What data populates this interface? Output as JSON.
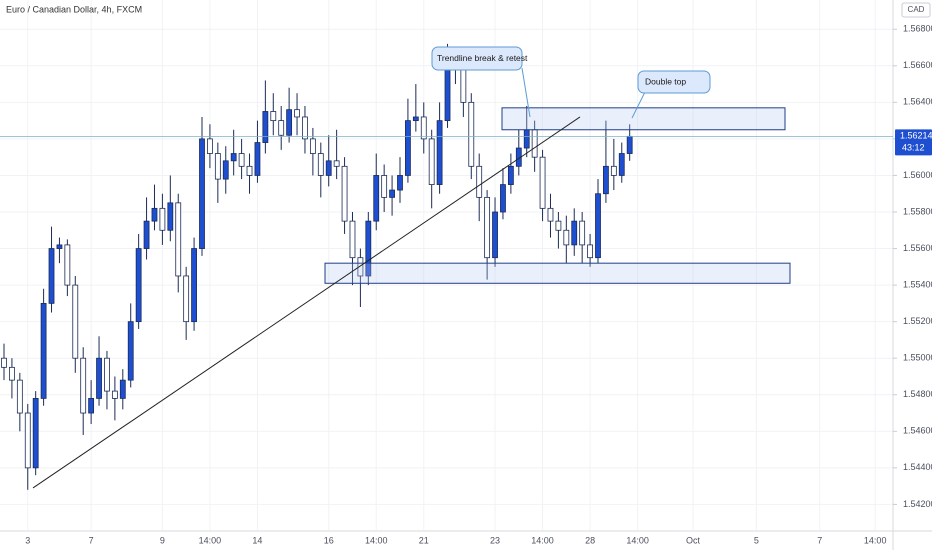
{
  "chart_data": {
    "type": "candlestick",
    "title": "Euro / Canadian Dollar, 4h, FXCM",
    "currency": "CAD",
    "countdown": "43:12",
    "last_price": 1.56214,
    "up_color": "#1f4fd1",
    "down_color": "#ffffff",
    "border_color": "#1b2b57",
    "grid": true,
    "ylim": [
      1.5406,
      1.5696
    ],
    "yticks": [
      {
        "value": 1.542,
        "label": "1.54200"
      },
      {
        "value": 1.544,
        "label": "1.54400"
      },
      {
        "value": 1.546,
        "label": "1.54600"
      },
      {
        "value": 1.548,
        "label": "1.54800"
      },
      {
        "value": 1.55,
        "label": "1.55000"
      },
      {
        "value": 1.552,
        "label": "1.55200"
      },
      {
        "value": 1.554,
        "label": "1.55400"
      },
      {
        "value": 1.556,
        "label": "1.55600"
      },
      {
        "value": 1.558,
        "label": "1.55800"
      },
      {
        "value": 1.56,
        "label": "1.56000"
      },
      {
        "value": 1.562,
        "label": "1.56200"
      },
      {
        "value": 1.564,
        "label": "1.56400"
      },
      {
        "value": 1.566,
        "label": "1.56600"
      },
      {
        "value": 1.568,
        "label": "1.56800"
      }
    ],
    "categories": [
      null,
      null,
      null,
      "3",
      null,
      null,
      null,
      null,
      null,
      null,
      null,
      "7",
      null,
      null,
      null,
      null,
      null,
      null,
      null,
      null,
      "9",
      null,
      null,
      null,
      null,
      null,
      "14:00",
      null,
      null,
      null,
      null,
      null,
      "14",
      null,
      null,
      null,
      null,
      null,
      null,
      null,
      null,
      "16",
      null,
      null,
      null,
      null,
      null,
      "14:00",
      null,
      null,
      null,
      null,
      null,
      "21",
      null,
      null,
      null,
      null,
      null,
      null,
      null,
      null,
      "23",
      null,
      null,
      null,
      null,
      null,
      "14:00",
      null,
      null,
      null,
      null,
      null,
      "28",
      null,
      null,
      null,
      null,
      null,
      "14:00",
      null,
      null,
      null,
      null,
      null,
      null,
      "Oct",
      null,
      null,
      null,
      null,
      null,
      null,
      null,
      "5",
      null,
      null,
      null,
      null,
      null,
      null,
      null,
      "7",
      null,
      null,
      null,
      null,
      null,
      null,
      "14:00"
    ],
    "open": [
      1.55,
      1.5495,
      1.5488,
      1.547,
      1.544,
      1.5478,
      1.553,
      1.556,
      1.5562,
      1.554,
      1.55,
      1.547,
      1.5478,
      1.55,
      1.5482,
      1.5478,
      1.5488,
      1.552,
      1.556,
      1.5575,
      1.5582,
      1.557,
      1.5585,
      1.5545,
      1.552,
      1.556,
      1.562,
      1.5612,
      1.5598,
      1.5608,
      1.5612,
      1.5605,
      1.56,
      1.5618,
      1.5635,
      1.563,
      1.5622,
      1.5636,
      1.5632,
      1.562,
      1.5612,
      1.56,
      1.5608,
      1.5605,
      1.5575,
      1.5555,
      1.5545,
      1.5575,
      1.56,
      1.5588,
      1.5592,
      1.56,
      1.563,
      1.5632,
      1.562,
      1.5595,
      1.563,
      1.5665,
      1.566,
      1.564,
      1.5605,
      1.5588,
      1.5555,
      1.558,
      1.5595,
      1.5605,
      1.5615,
      1.5625,
      1.561,
      1.5582,
      1.5575,
      1.557,
      1.5562,
      1.5575,
      1.5562,
      1.5555,
      1.559,
      1.5605,
      1.56,
      1.5612,
      null,
      null,
      null,
      null,
      null,
      null,
      null,
      null,
      null,
      null,
      null,
      null,
      null,
      null,
      null,
      null,
      null,
      null,
      null,
      null,
      null,
      null,
      null,
      null,
      null,
      null,
      null,
      null,
      null,
      null,
      null
    ],
    "high": [
      1.5508,
      1.55,
      1.5492,
      1.5475,
      1.5482,
      1.5538,
      1.5572,
      1.5566,
      1.5565,
      1.5545,
      1.5506,
      1.5488,
      1.5512,
      1.5504,
      1.549,
      1.5494,
      1.553,
      1.5568,
      1.5588,
      1.5595,
      1.559,
      1.56,
      1.559,
      1.555,
      1.5566,
      1.5632,
      1.5628,
      1.5618,
      1.5616,
      1.5625,
      1.562,
      1.5612,
      1.563,
      1.5652,
      1.5645,
      1.5638,
      1.5648,
      1.5645,
      1.5638,
      1.5626,
      1.5618,
      1.5622,
      1.5625,
      1.561,
      1.558,
      1.556,
      1.558,
      1.5612,
      1.5606,
      1.56,
      1.561,
      1.5642,
      1.565,
      1.564,
      1.5625,
      1.564,
      1.5672,
      1.567,
      1.5664,
      1.5645,
      1.5612,
      1.5592,
      1.5588,
      1.5604,
      1.5612,
      1.5625,
      1.5638,
      1.563,
      1.5614,
      1.559,
      1.558,
      1.5578,
      1.5582,
      1.558,
      1.5568,
      1.5598,
      1.563,
      1.562,
      1.5618,
      1.5628,
      null,
      null,
      null,
      null,
      null,
      null,
      null,
      null,
      null,
      null,
      null,
      null,
      null,
      null,
      null,
      null,
      null,
      null,
      null,
      null,
      null,
      null,
      null,
      null,
      null,
      null,
      null,
      null,
      null,
      null,
      null
    ],
    "low": [
      1.5488,
      1.5478,
      1.546,
      1.5428,
      1.5436,
      1.5474,
      1.5525,
      1.5552,
      1.5534,
      1.5492,
      1.5458,
      1.5464,
      1.5474,
      1.5472,
      1.5466,
      1.5472,
      1.5484,
      1.5516,
      1.5554,
      1.557,
      1.5562,
      1.5564,
      1.5536,
      1.551,
      1.5515,
      1.5556,
      1.5604,
      1.5585,
      1.559,
      1.56,
      1.5598,
      1.559,
      1.5596,
      1.5612,
      1.5622,
      1.5614,
      1.5618,
      1.5622,
      1.5612,
      1.56,
      1.5588,
      1.5594,
      1.5598,
      1.5568,
      1.554,
      1.5528,
      1.554,
      1.557,
      1.558,
      1.5578,
      1.5585,
      1.5596,
      1.5624,
      1.5612,
      1.5582,
      1.559,
      1.5626,
      1.565,
      1.5632,
      1.5598,
      1.5575,
      1.5543,
      1.555,
      1.5576,
      1.559,
      1.56,
      1.561,
      1.5602,
      1.5575,
      1.5566,
      1.556,
      1.5552,
      1.5556,
      1.5552,
      1.555,
      1.5552,
      1.5585,
      1.5592,
      1.5596,
      1.5608,
      null,
      null,
      null,
      null,
      null,
      null,
      null,
      null,
      null,
      null,
      null,
      null,
      null,
      null,
      null,
      null,
      null,
      null,
      null,
      null,
      null,
      null,
      null,
      null,
      null,
      null,
      null,
      null,
      null,
      null,
      null
    ],
    "close": [
      1.5495,
      1.5488,
      1.547,
      1.544,
      1.5478,
      1.553,
      1.556,
      1.5562,
      1.554,
      1.55,
      1.547,
      1.5478,
      1.55,
      1.5482,
      1.5478,
      1.5488,
      1.552,
      1.556,
      1.5575,
      1.5582,
      1.557,
      1.5585,
      1.5545,
      1.552,
      1.556,
      1.562,
      1.5612,
      1.5598,
      1.5608,
      1.5612,
      1.5605,
      1.56,
      1.5618,
      1.5635,
      1.563,
      1.5622,
      1.5636,
      1.5632,
      1.562,
      1.5612,
      1.56,
      1.5608,
      1.5605,
      1.5575,
      1.5555,
      1.5545,
      1.5575,
      1.56,
      1.5588,
      1.5592,
      1.56,
      1.563,
      1.5632,
      1.562,
      1.5595,
      1.563,
      1.5665,
      1.566,
      1.564,
      1.5605,
      1.5588,
      1.5555,
      1.558,
      1.5595,
      1.5605,
      1.5615,
      1.5625,
      1.561,
      1.5582,
      1.5575,
      1.557,
      1.5562,
      1.5575,
      1.5562,
      1.5555,
      1.559,
      1.5605,
      1.56,
      1.5612,
      1.56214,
      null,
      null,
      null,
      null,
      null,
      null,
      null,
      null,
      null,
      null,
      null,
      null,
      null,
      null,
      null,
      null,
      null,
      null,
      null,
      null,
      null,
      null,
      null,
      null,
      null,
      null,
      null,
      null,
      null,
      null,
      null
    ],
    "zones": [
      {
        "top": 1.5637,
        "bottom": 1.5625
      },
      {
        "top": 1.5552,
        "bottom": 1.5541
      }
    ],
    "trendline": {
      "start": 1.5429,
      "end": 1.5632
    },
    "annotations": [
      "Trendline break & retest",
      "Double top"
    ]
  }
}
